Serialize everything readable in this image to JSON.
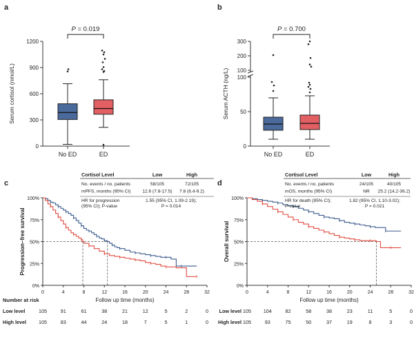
{
  "colors": {
    "low": "#3a5a8c",
    "high": "#e04a3f",
    "box_low": "#4a6a9c",
    "box_high": "#e25f63",
    "low_label": "#3a56a8",
    "high_label": "#d8402e",
    "axis": "#333333",
    "guide": "#555555"
  },
  "chart_data": [
    {
      "panel": "a",
      "type": "box",
      "p_label": "P = 0.019",
      "ylabel": "Serum cortisol (nmol/L)",
      "ylim": [
        0,
        1200
      ],
      "yticks": [
        "0",
        "300",
        "600",
        "900",
        "1200"
      ],
      "categories": [
        "No ED",
        "ED"
      ],
      "groups": [
        {
          "name": "No ED",
          "whisker_low": 20,
          "q1": 305,
          "median": 385,
          "q3": 485,
          "whisker_high": 715,
          "outliers": [
            855,
            880
          ]
        },
        {
          "name": "ED",
          "whisker_low": 215,
          "q1": 365,
          "median": 430,
          "q3": 530,
          "whisker_high": 760,
          "outliers": [
            850,
            860,
            880,
            905,
            960,
            1000,
            1050,
            1075,
            1095,
            15
          ]
        }
      ],
      "colors": [
        "#4a6a9c",
        "#e25f63"
      ]
    },
    {
      "panel": "b",
      "type": "box",
      "p_label": "P = 0.700",
      "ylabel": "Serum ACTH (ng/L)",
      "axis_break": true,
      "yticks": [
        "0",
        "50",
        "100",
        "100",
        "200",
        "300"
      ],
      "categories": [
        "No ED",
        "ED"
      ],
      "groups": [
        {
          "name": "No ED",
          "whisker_low": 10,
          "q1": 23,
          "median": 32,
          "q3": 42,
          "whisker_high": 70,
          "outliers": [
            80,
            88,
            93,
            205
          ]
        },
        {
          "name": "ED",
          "whisker_low": 10,
          "q1": 24,
          "median": 33,
          "q3": 45,
          "whisker_high": 73,
          "outliers": [
            78,
            83,
            86,
            89,
            92,
            125,
            140,
            185,
            280,
            300
          ]
        }
      ],
      "colors": [
        "#4a6a9c",
        "#e25f63"
      ]
    },
    {
      "panel": "c",
      "type": "line",
      "subtype": "kaplan-meier",
      "ylabel": "Progression–free survival",
      "xlabel": "Follow up time (months)",
      "xlim": [
        0,
        32
      ],
      "ylim": [
        0,
        100
      ],
      "xticks": [
        "0",
        "4",
        "8",
        "12",
        "16",
        "20",
        "24",
        "28",
        "32"
      ],
      "yticks": [
        "0%",
        "25%",
        "50%",
        "75%",
        "100%"
      ],
      "median_lines": [
        {
          "x": 12.6,
          "series": "Low level"
        },
        {
          "x": 7.8,
          "series": "High level"
        }
      ],
      "series": [
        {
          "name": "Low level",
          "color": "#3a5a8c",
          "points": [
            [
              0,
              100
            ],
            [
              0.5,
              99
            ],
            [
              1,
              97
            ],
            [
              1.5,
              95
            ],
            [
              2,
              94
            ],
            [
              2.5,
              92
            ],
            [
              3,
              90
            ],
            [
              3.5,
              88
            ],
            [
              4,
              86
            ],
            [
              4.5,
              84
            ],
            [
              5,
              82
            ],
            [
              5.5,
              80
            ],
            [
              6,
              77
            ],
            [
              6.5,
              74
            ],
            [
              7,
              71
            ],
            [
              7.5,
              68
            ],
            [
              8,
              65
            ],
            [
              8.5,
              63
            ],
            [
              9,
              62
            ],
            [
              9.5,
              60
            ],
            [
              10,
              58
            ],
            [
              10.5,
              56
            ],
            [
              11,
              54
            ],
            [
              11.5,
              53
            ],
            [
              12,
              51
            ],
            [
              12.6,
              50
            ],
            [
              13,
              48
            ],
            [
              13.5,
              46
            ],
            [
              14,
              44
            ],
            [
              14.5,
              43
            ],
            [
              15,
              42
            ],
            [
              16,
              40
            ],
            [
              17,
              38
            ],
            [
              18,
              37
            ],
            [
              19,
              36
            ],
            [
              20,
              35
            ],
            [
              21,
              34
            ],
            [
              22,
              33
            ],
            [
              23,
              32
            ],
            [
              24,
              32
            ],
            [
              25,
              30
            ],
            [
              26,
              22
            ],
            [
              27,
              22
            ],
            [
              28,
              22
            ],
            [
              30,
              22
            ]
          ]
        },
        {
          "name": "High level",
          "color": "#e04a3f",
          "points": [
            [
              0,
              100
            ],
            [
              0.5,
              97
            ],
            [
              1,
              93
            ],
            [
              1.5,
              90
            ],
            [
              2,
              86
            ],
            [
              2.5,
              82
            ],
            [
              3,
              78
            ],
            [
              3.5,
              74
            ],
            [
              4,
              70
            ],
            [
              4.5,
              66
            ],
            [
              5,
              63
            ],
            [
              5.5,
              60
            ],
            [
              6,
              58
            ],
            [
              6.5,
              56
            ],
            [
              7,
              54
            ],
            [
              7.5,
              52
            ],
            [
              7.8,
              50
            ],
            [
              8,
              48
            ],
            [
              9,
              45
            ],
            [
              10,
              42
            ],
            [
              11,
              39
            ],
            [
              12,
              36
            ],
            [
              13,
              34
            ],
            [
              14,
              33
            ],
            [
              15,
              32
            ],
            [
              16,
              31
            ],
            [
              17,
              30
            ],
            [
              18,
              29
            ],
            [
              19,
              28
            ],
            [
              20,
              26
            ],
            [
              21,
              25
            ],
            [
              22,
              24
            ],
            [
              23,
              22
            ],
            [
              24,
              21
            ],
            [
              26,
              20
            ],
            [
              28,
              10
            ],
            [
              30,
              10
            ]
          ]
        }
      ],
      "stats_table": {
        "header": [
          "Cortisol Level",
          "Low",
          "High"
        ],
        "rows": [
          {
            "label": "No. events / no. patients",
            "low": "58/105",
            "high": "72/105"
          },
          {
            "label": "mPFS, months (95% CI)",
            "low": "12.6 (7.8-17.5)",
            "high": "7.8 (6.4-9.2)"
          },
          {
            "label": "HR for progression",
            "label2": "(95% CI); P-value",
            "value": "1.55 (95% CI, 1.09-2.19);",
            "value2": "P = 0.014"
          }
        ]
      },
      "risk_table": {
        "title": "Number at risk",
        "rows": [
          {
            "label": "Low level",
            "values": [
              "105",
              "91",
              "61",
              "38",
              "21",
              "12",
              "5",
              "2",
              "0"
            ]
          },
          {
            "label": "High level",
            "values": [
              "105",
              "83",
              "44",
              "24",
              "18",
              "7",
              "5",
              "1",
              "0"
            ]
          }
        ]
      }
    },
    {
      "panel": "d",
      "type": "line",
      "subtype": "kaplan-meier",
      "ylabel": "Overall survival",
      "xlabel": "Follow up time (months)",
      "xlim": [
        0,
        32
      ],
      "ylim": [
        0,
        100
      ],
      "xticks": [
        "0",
        "4",
        "8",
        "12",
        "16",
        "20",
        "24",
        "28",
        "32"
      ],
      "yticks": [
        "0%",
        "25%",
        "50%",
        "75%",
        "100%"
      ],
      "median_lines": [
        {
          "x": 25.2,
          "series": "High level"
        }
      ],
      "series": [
        {
          "name": "Low level",
          "color": "#3a5a8c",
          "points": [
            [
              0,
              100
            ],
            [
              1,
              99
            ],
            [
              2,
              98
            ],
            [
              3,
              97
            ],
            [
              4,
              96
            ],
            [
              5,
              95
            ],
            [
              6,
              94
            ],
            [
              7,
              92
            ],
            [
              8,
              91
            ],
            [
              9,
              90
            ],
            [
              10,
              88
            ],
            [
              11,
              86
            ],
            [
              12,
              84
            ],
            [
              13,
              82
            ],
            [
              14,
              80
            ],
            [
              15,
              78
            ],
            [
              16,
              77
            ],
            [
              17,
              76
            ],
            [
              18,
              74
            ],
            [
              19,
              72
            ],
            [
              20,
              71
            ],
            [
              21,
              70
            ],
            [
              22,
              69
            ],
            [
              23,
              68
            ],
            [
              24,
              67
            ],
            [
              25,
              66
            ],
            [
              26,
              66
            ],
            [
              27,
              62
            ],
            [
              28,
              62
            ],
            [
              30,
              62
            ]
          ]
        },
        {
          "name": "High level",
          "color": "#e04a3f",
          "points": [
            [
              0,
              100
            ],
            [
              1,
              98
            ],
            [
              2,
              96
            ],
            [
              3,
              93
            ],
            [
              4,
              90
            ],
            [
              5,
              87
            ],
            [
              6,
              84
            ],
            [
              7,
              81
            ],
            [
              8,
              78
            ],
            [
              9,
              75
            ],
            [
              10,
              72
            ],
            [
              11,
              70
            ],
            [
              12,
              67
            ],
            [
              13,
              65
            ],
            [
              14,
              63
            ],
            [
              15,
              61
            ],
            [
              16,
              59
            ],
            [
              17,
              57
            ],
            [
              18,
              55
            ],
            [
              19,
              54
            ],
            [
              20,
              53
            ],
            [
              21,
              52
            ],
            [
              22,
              51
            ],
            [
              23,
              51
            ],
            [
              24,
              51
            ],
            [
              25.2,
              50
            ],
            [
              26,
              43
            ],
            [
              28,
              43
            ],
            [
              30,
              43
            ]
          ]
        }
      ],
      "stats_table": {
        "header": [
          "Cortisol Level",
          "Low",
          "High"
        ],
        "rows": [
          {
            "label": "No. events / no. patients",
            "low": "24/105",
            "high": "40/105"
          },
          {
            "label": "mOS, months (95% CI)",
            "low": "NR",
            "high": "25.2 (14.2-36.2)"
          },
          {
            "label": "HR for death (95% CI);",
            "label2": "P-value",
            "value": "1.82 (95% CI, 1.10-3.02);",
            "value2": "P = 0.021"
          }
        ]
      },
      "risk_table": {
        "title": "Number at risk",
        "rows": [
          {
            "label": "Low level",
            "values": [
              "105",
              "104",
              "82",
              "58",
              "38",
              "23",
              "11",
              "5",
              "0"
            ]
          },
          {
            "label": "High level",
            "values": [
              "105",
              "93",
              "75",
              "50",
              "37",
              "19",
              "8",
              "3",
              "0"
            ]
          }
        ]
      }
    }
  ]
}
